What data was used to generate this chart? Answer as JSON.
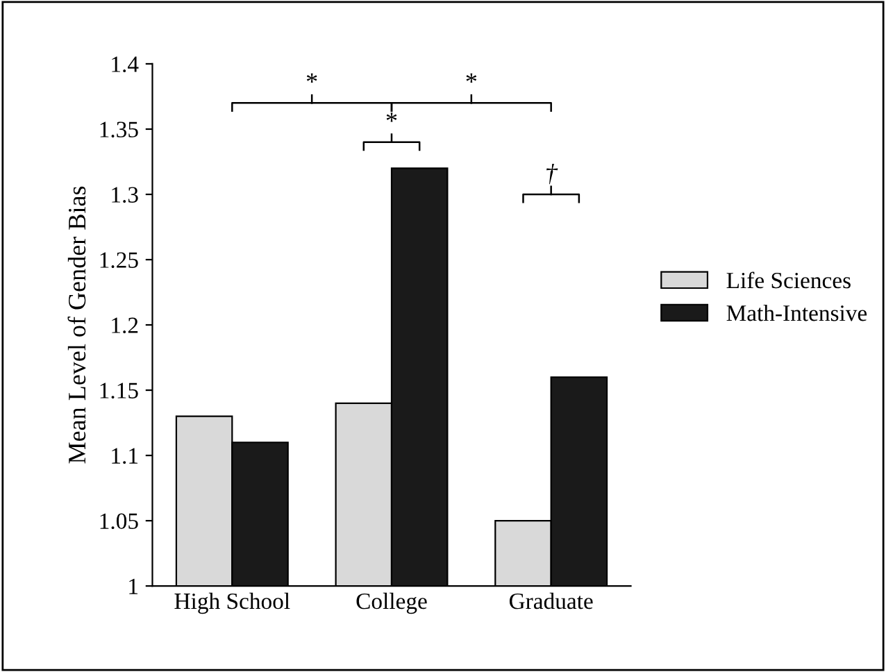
{
  "chart_data": {
    "type": "bar",
    "ylabel": "Mean Level of Gender Bias",
    "categories": [
      "High School",
      "College",
      "Graduate"
    ],
    "series": [
      {
        "name": "Life Sciences",
        "color": "#d9d9d9",
        "values": [
          1.13,
          1.14,
          1.05
        ]
      },
      {
        "name": "Math-Intensive",
        "color": "#1a1a1a",
        "values": [
          1.11,
          1.32,
          1.16
        ]
      }
    ],
    "ylim": [
      1,
      1.4
    ],
    "yticks": [
      1,
      1.05,
      1.1,
      1.15,
      1.2,
      1.25,
      1.3,
      1.35,
      1.4
    ],
    "annotations": [
      "*",
      "*",
      "*",
      "†"
    ],
    "grid": false,
    "legend": "right"
  }
}
